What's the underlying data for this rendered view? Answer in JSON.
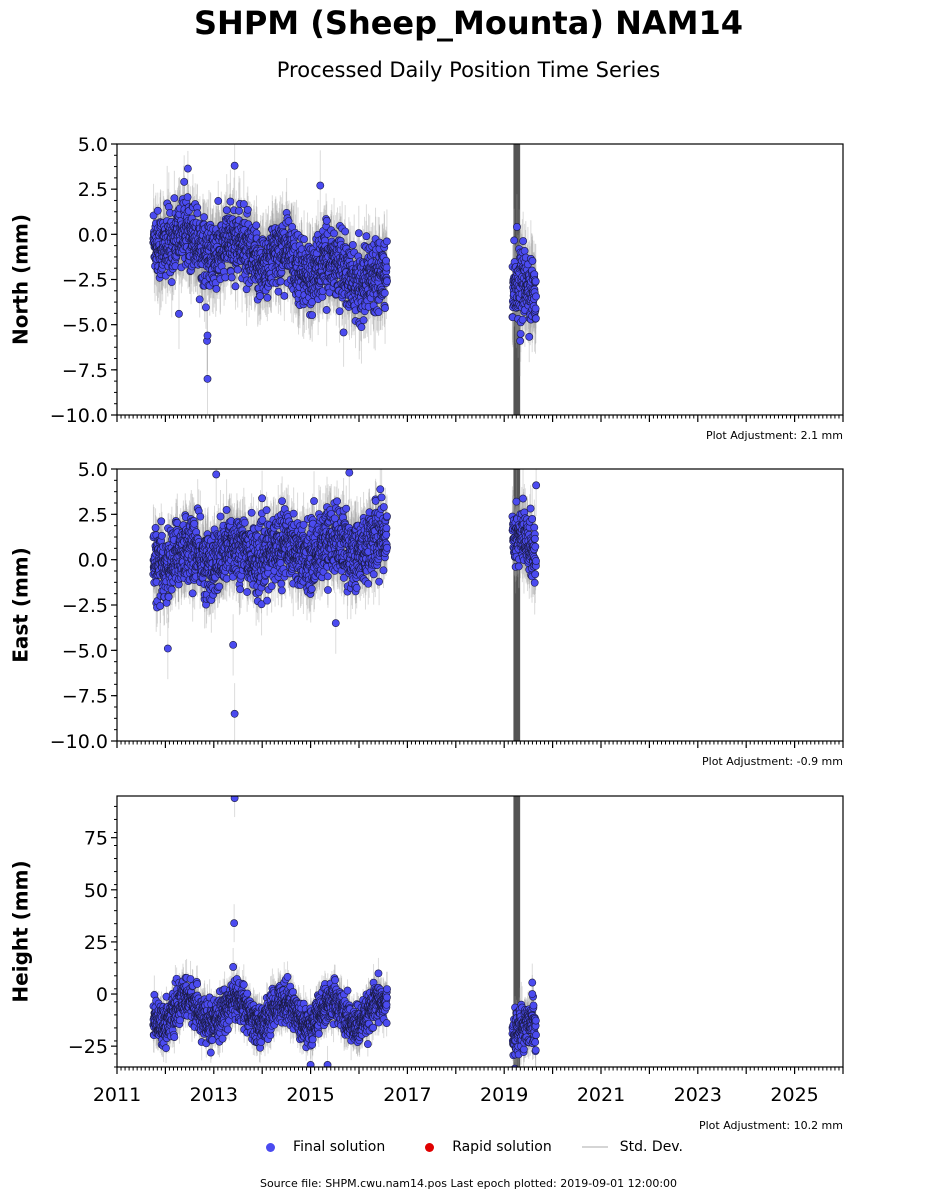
{
  "title": "SHPM (Sheep_Mounta) NAM14",
  "subtitle": "Processed Daily Position Time Series",
  "legend": {
    "final": "Final solution",
    "rapid": "Rapid solution",
    "std": "Std. Dev."
  },
  "footer": "Source file: SHPM.cwu.nam14.pos  Last epoch plotted: 2019-09-01 12:00:00",
  "colors": {
    "final": "#4b4bf0",
    "rapid": "#e00000",
    "std": "#9a9a9a",
    "outage": "#555555"
  },
  "chart_data": [
    {
      "type": "scatter",
      "ylabel": "North (mm)",
      "xlim": [
        2011,
        2026
      ],
      "ylim": [
        -10,
        5
      ],
      "yticks": [
        "5.0",
        "2.5",
        "0.0",
        "−2.5",
        "−5.0",
        "−7.5",
        "−10.0"
      ],
      "ytick_values": [
        5,
        2.5,
        0,
        -2.5,
        -5,
        -7.5,
        -10
      ],
      "adjustment": "Plot Adjustment: 2.1 mm",
      "segments": [
        {
          "x_start": 2011.75,
          "x_end": 2016.58,
          "trend": [
            0.0,
            -2.6
          ],
          "seasonal": 0.6,
          "noise": 0.9,
          "std": 1.5
        },
        {
          "x_start": 2019.17,
          "x_end": 2019.66,
          "trend": [
            -2.6,
            -3.5
          ],
          "seasonal": 0.3,
          "noise": 0.9,
          "std": 1.6
        }
      ],
      "outliers": [
        [
          2012.87,
          -8.0
        ],
        [
          2012.86,
          -5.9
        ],
        [
          2012.87,
          -5.6
        ],
        [
          2013.43,
          3.8
        ],
        [
          2015.2,
          2.7
        ],
        [
          2012.28,
          -4.4
        ],
        [
          2019.33,
          -5.9
        ]
      ],
      "outage_band": [
        2019.2,
        2019.32
      ]
    },
    {
      "type": "scatter",
      "ylabel": "East (mm)",
      "xlim": [
        2011,
        2026
      ],
      "ylim": [
        -10,
        5
      ],
      "yticks": [
        "5.0",
        "2.5",
        "0.0",
        "−2.5",
        "−5.0",
        "−7.5",
        "−10.0"
      ],
      "ytick_values": [
        5,
        2.5,
        0,
        -2.5,
        -5,
        -7.5,
        -10
      ],
      "adjustment": "Plot Adjustment: -0.9 mm",
      "segments": [
        {
          "x_start": 2011.75,
          "x_end": 2016.58,
          "trend": [
            0.0,
            0.9
          ],
          "seasonal": 0.5,
          "noise": 0.9,
          "std": 1.3
        },
        {
          "x_start": 2019.17,
          "x_end": 2019.66,
          "trend": [
            1.5,
            0.2
          ],
          "seasonal": 0.3,
          "noise": 0.8,
          "std": 1.4
        }
      ],
      "outliers": [
        [
          2012.05,
          -4.9
        ],
        [
          2013.43,
          -8.5
        ],
        [
          2013.4,
          -4.7
        ],
        [
          2013.05,
          4.7
        ],
        [
          2015.8,
          4.8
        ],
        [
          2019.66,
          4.1
        ],
        [
          2015.52,
          -3.5
        ]
      ],
      "outage_band": [
        2019.2,
        2019.32
      ]
    },
    {
      "type": "scatter",
      "ylabel": "Height (mm)",
      "xlim": [
        2011,
        2026
      ],
      "ylim": [
        -35,
        95
      ],
      "yticks": [
        "75",
        "50",
        "25",
        "0",
        "−25"
      ],
      "ytick_values": [
        75,
        50,
        25,
        0,
        -25
      ],
      "xticks": [
        "2011",
        "2013",
        "2015",
        "2017",
        "2019",
        "2021",
        "2023",
        "2025"
      ],
      "xtick_values": [
        2011,
        2013,
        2015,
        2017,
        2019,
        2021,
        2023,
        2025
      ],
      "adjustment": "Plot Adjustment: 10.2 mm",
      "segments": [
        {
          "x_start": 2011.75,
          "x_end": 2016.58,
          "trend": [
            -8.0,
            -10.0
          ],
          "seasonal": 6.0,
          "noise": 4.5,
          "std": 7.0
        },
        {
          "x_start": 2019.17,
          "x_end": 2019.66,
          "trend": [
            -20.0,
            -15.0
          ],
          "seasonal": 3.0,
          "noise": 5.0,
          "std": 8.0
        }
      ],
      "outliers": [
        [
          2013.43,
          94.0
        ],
        [
          2013.42,
          34.0
        ],
        [
          2013.4,
          13.0
        ],
        [
          2019.58,
          5.5
        ],
        [
          2019.58,
          0.0
        ],
        [
          2015.0,
          -34.0
        ],
        [
          2015.35,
          -34.0
        ]
      ],
      "outage_band": [
        2019.2,
        2019.32
      ]
    }
  ]
}
